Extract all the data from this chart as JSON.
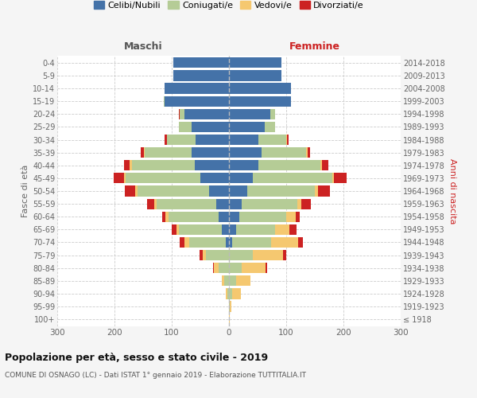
{
  "age_groups": [
    "100+",
    "95-99",
    "90-94",
    "85-89",
    "80-84",
    "75-79",
    "70-74",
    "65-69",
    "60-64",
    "55-59",
    "50-54",
    "45-49",
    "40-44",
    "35-39",
    "30-34",
    "25-29",
    "20-24",
    "15-19",
    "10-14",
    "5-9",
    "0-4"
  ],
  "birth_years": [
    "≤ 1918",
    "1919-1923",
    "1924-1928",
    "1929-1933",
    "1934-1938",
    "1939-1943",
    "1944-1948",
    "1949-1953",
    "1954-1958",
    "1959-1963",
    "1964-1968",
    "1969-1973",
    "1974-1978",
    "1979-1983",
    "1984-1988",
    "1989-1993",
    "1994-1998",
    "1999-2003",
    "2004-2008",
    "2009-2013",
    "2014-2018"
  ],
  "males": {
    "celibi": [
      0,
      0,
      0,
      0,
      0,
      0,
      5,
      12,
      18,
      22,
      35,
      50,
      60,
      65,
      58,
      65,
      78,
      112,
      112,
      97,
      97
    ],
    "coniugati": [
      0,
      0,
      3,
      8,
      18,
      40,
      65,
      75,
      88,
      105,
      125,
      130,
      110,
      82,
      50,
      22,
      8,
      2,
      0,
      0,
      0
    ],
    "vedovi": [
      0,
      0,
      2,
      5,
      8,
      6,
      8,
      5,
      5,
      4,
      4,
      4,
      3,
      2,
      1,
      0,
      0,
      0,
      0,
      0,
      0
    ],
    "divorziati": [
      0,
      0,
      0,
      0,
      2,
      6,
      8,
      8,
      5,
      12,
      18,
      18,
      10,
      5,
      3,
      1,
      1,
      0,
      0,
      0,
      0
    ]
  },
  "females": {
    "nubili": [
      0,
      0,
      0,
      0,
      0,
      0,
      5,
      12,
      18,
      22,
      32,
      42,
      52,
      57,
      52,
      62,
      72,
      108,
      108,
      92,
      92
    ],
    "coniugate": [
      0,
      1,
      5,
      12,
      22,
      42,
      68,
      68,
      82,
      97,
      118,
      138,
      108,
      78,
      48,
      18,
      8,
      0,
      0,
      0,
      0
    ],
    "vedove": [
      1,
      3,
      16,
      26,
      42,
      52,
      48,
      26,
      16,
      8,
      5,
      3,
      3,
      2,
      1,
      0,
      0,
      0,
      0,
      0,
      0
    ],
    "divorziate": [
      0,
      0,
      0,
      0,
      2,
      6,
      8,
      12,
      8,
      16,
      22,
      22,
      10,
      5,
      3,
      1,
      1,
      0,
      0,
      0,
      0
    ]
  },
  "colors": {
    "celibi": "#4472a8",
    "coniugati": "#b5cc96",
    "vedovi": "#f5c870",
    "divorziati": "#cc2222"
  },
  "xlim": 300,
  "title": "Popolazione per età, sesso e stato civile - 2019",
  "subtitle": "COMUNE DI OSNAGO (LC) - Dati ISTAT 1° gennaio 2019 - Elaborazione TUTTITALIA.IT",
  "ylabel_left": "Fasce di età",
  "ylabel_right": "Anni di nascita",
  "xlabel_left": "Maschi",
  "xlabel_right": "Femmine",
  "legend_labels": [
    "Celibi/Nubili",
    "Coniugati/e",
    "Vedovi/e",
    "Divorziati/e"
  ],
  "bg_color": "#f5f5f5",
  "plot_bg": "#ffffff"
}
